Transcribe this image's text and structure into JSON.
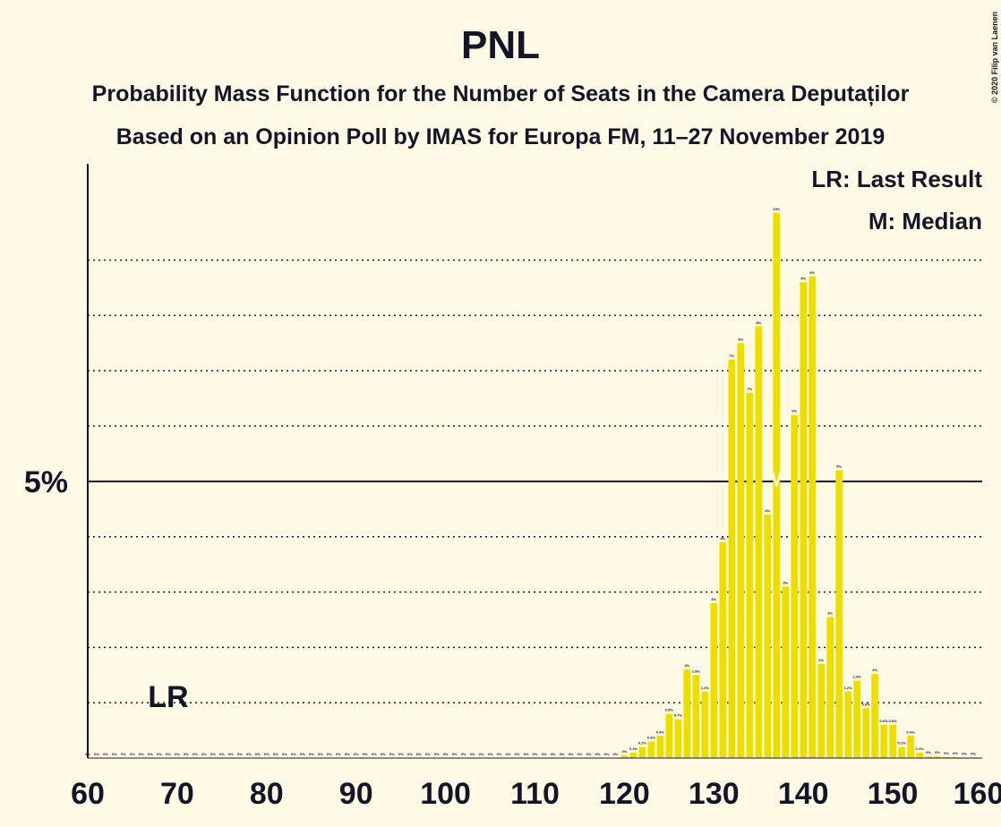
{
  "chart_data": {
    "type": "bar",
    "title": "PNL",
    "subtitle": "Probability Mass Function for the Number of Seats in the Camera Deputaților",
    "subtitle2": "Based on an Opinion Poll by IMAS for Europa FM, 11–27 November 2019",
    "legend_lr": "LR: Last Result",
    "legend_median": "M: Median",
    "lr_label": "LR",
    "copyright": "© 2020 Filip van Laenen",
    "last_result": 69,
    "median": 137,
    "color": "#eedd00",
    "x": [
      60,
      61,
      62,
      63,
      64,
      65,
      66,
      67,
      68,
      69,
      70,
      71,
      72,
      73,
      74,
      75,
      76,
      77,
      78,
      79,
      80,
      81,
      82,
      83,
      84,
      85,
      86,
      87,
      88,
      89,
      90,
      91,
      92,
      93,
      94,
      95,
      96,
      97,
      98,
      99,
      100,
      101,
      102,
      103,
      104,
      105,
      106,
      107,
      108,
      109,
      110,
      111,
      112,
      113,
      114,
      115,
      116,
      117,
      118,
      119,
      120,
      121,
      122,
      123,
      124,
      125,
      126,
      127,
      128,
      129,
      130,
      131,
      132,
      133,
      134,
      135,
      136,
      137,
      138,
      139,
      140,
      141,
      142,
      143,
      144,
      145,
      146,
      147,
      148,
      149,
      150,
      151,
      152,
      153,
      154,
      155,
      156,
      157,
      158,
      159
    ],
    "values": [
      0,
      0,
      0,
      0,
      0,
      0,
      0,
      0,
      0,
      0,
      0,
      0,
      0,
      0,
      0,
      0,
      0,
      0,
      0,
      0,
      0,
      0,
      0,
      0,
      0,
      0,
      0,
      0,
      0,
      0,
      0,
      0,
      0,
      0,
      0,
      0,
      0,
      0,
      0,
      0,
      0,
      0,
      0,
      0,
      0,
      0,
      0,
      0,
      0,
      0,
      0,
      0,
      0,
      0,
      0,
      0,
      0,
      0,
      0,
      0,
      0.05,
      0.1,
      0.2,
      0.3,
      0.4,
      0.8,
      0.7,
      1.6,
      1.5,
      1.2,
      2.8,
      3.9,
      7.2,
      7.5,
      6.6,
      7.8,
      4.4,
      9.85,
      3.1,
      6.2,
      8.6,
      8.7,
      1.7,
      2.55,
      5.2,
      1.2,
      1.4,
      0.9,
      1.52,
      0.6,
      0.6,
      0.2,
      0.4,
      0.1,
      0.03,
      0.03,
      0.02,
      0.02,
      0.01,
      0.01
    ],
    "value_labels": [
      "0%",
      "0%",
      "0%",
      "0%",
      "0%",
      "0%",
      "0%",
      "0%",
      "0%",
      "0%",
      "0%",
      "0%",
      "0%",
      "0%",
      "0%",
      "0%",
      "0%",
      "0%",
      "0%",
      "0%",
      "0%",
      "0%",
      "0%",
      "0%",
      "0%",
      "0%",
      "0%",
      "0%",
      "0%",
      "0%",
      "0%",
      "0%",
      "0%",
      "0%",
      "0%",
      "0%",
      "0%",
      "0%",
      "0%",
      "0%",
      "0%",
      "0%",
      "0%",
      "0%",
      "0%",
      "0%",
      "0%",
      "0%",
      "0%",
      "0%",
      "0%",
      "0%",
      "0%",
      "0%",
      "0%",
      "0%",
      "0%",
      "0%",
      "0%",
      "0%",
      "0%",
      "0.1%",
      "0.2%",
      "0.3%",
      "0.4%",
      "0.8%",
      "0.7%",
      "2%",
      "1.5%",
      "1.2%",
      "3%",
      "4%",
      "7%",
      "8%",
      "7%",
      "8%",
      "4%",
      "10%",
      "3%",
      "6%",
      "9%",
      "9%",
      "2%",
      "3%",
      "5%",
      "1.2%",
      "1.4%",
      "0.9%",
      "2%",
      "0.6%",
      "0.6%",
      "0.2%",
      "0.4%",
      "0.1%",
      "0%",
      "0%",
      "0%",
      "0%",
      "0%",
      "0%"
    ],
    "xlim": [
      60,
      160
    ],
    "xticks": [
      60,
      70,
      80,
      90,
      100,
      110,
      120,
      130,
      140,
      150,
      160
    ],
    "ylim": [
      0,
      10.74
    ],
    "yticks": [
      {
        "value": 5,
        "label": "5%"
      }
    ],
    "yminor": [
      1,
      2,
      3,
      4,
      6,
      7,
      8,
      9
    ]
  }
}
